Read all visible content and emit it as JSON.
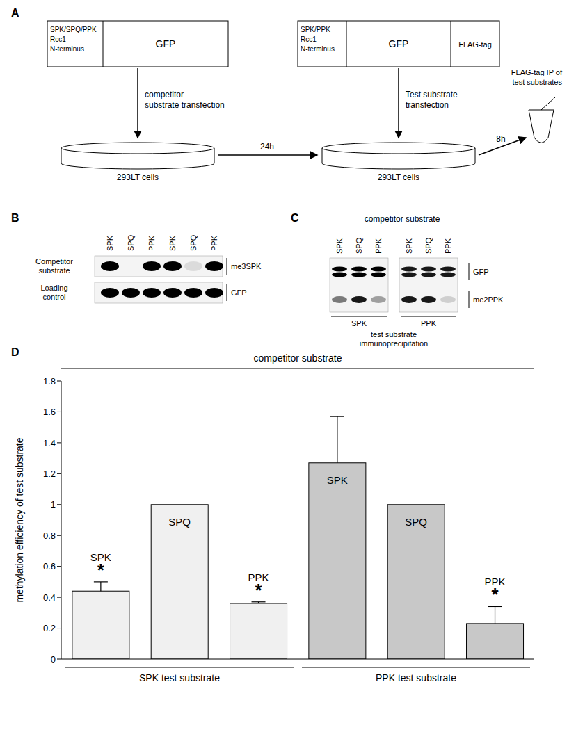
{
  "panel_labels": [
    "A",
    "B",
    "C",
    "D"
  ],
  "diagram": {
    "competitor_construct": {
      "lines": [
        "SPK/SPQ/PPK",
        "Rcc1",
        "N-terminus"
      ],
      "gfp": "GFP"
    },
    "test_construct": {
      "lines": [
        "SPK/PPK",
        "Rcc1",
        "N-terminus"
      ],
      "gfp": "GFP",
      "tag": "FLAG-tag"
    },
    "step1": [
      "competitor",
      "substrate transfection"
    ],
    "step2": [
      "Test substrate",
      "transfection"
    ],
    "cells": "293LT cells",
    "time1": "24h",
    "time2": "8h",
    "ip": [
      "FLAG-tag IP of",
      "test substrates"
    ]
  },
  "blot_b": {
    "lanes": [
      "SPK",
      "SPQ",
      "PPK",
      "SPK",
      "SPQ",
      "PPK"
    ],
    "rows": [
      {
        "label": [
          "Competitor",
          "substrate"
        ],
        "antibody": "me3SPK",
        "intensity": [
          1,
          0,
          1,
          1,
          0.1,
          1
        ]
      },
      {
        "label": [
          "Loading",
          "control"
        ],
        "antibody": "GFP",
        "intensity": [
          1,
          1,
          1,
          1,
          1,
          1
        ]
      }
    ]
  },
  "blot_c": {
    "title": "competitor substrate",
    "lanes": [
      "SPK",
      "SPQ",
      "PPK",
      "SPK",
      "SPQ",
      "PPK"
    ],
    "rows": [
      {
        "antibody": "GFP",
        "intensity": [
          1,
          1,
          1,
          0.9,
          0.9,
          0.9
        ]
      },
      {
        "antibody": "me2PPK",
        "intensity": [
          0.5,
          0.9,
          0.35,
          0.9,
          0.9,
          0.15
        ]
      }
    ],
    "groups": [
      "SPK",
      "PPK"
    ],
    "footer": [
      "test substrate",
      "immunoprecipitation"
    ]
  },
  "chart_data": {
    "type": "bar",
    "title": "competitor substrate",
    "y_label": "methylation efficiency of test substrate",
    "categories": [
      "SPK",
      "SPQ",
      "PPK",
      "SPK",
      "SPQ",
      "PPK"
    ],
    "values": [
      0.44,
      1,
      0.36,
      1.27,
      1,
      0.23
    ],
    "errors": [
      0.06,
      null,
      0.01,
      0.3,
      null,
      0.11
    ],
    "significance": [
      "*",
      null,
      "*",
      null,
      null,
      "*"
    ],
    "group_labels": [
      "SPK test substrate",
      "PPK test substrate"
    ],
    "colors": [
      "#f0f0f0",
      "#f0f0f0",
      "#f0f0f0",
      "#c8c8c8",
      "#c8c8c8",
      "#c8c8c8"
    ],
    "ylim": [
      0,
      1.8
    ],
    "yticks": [
      0,
      0.2,
      0.4,
      0.6,
      0.8,
      1,
      1.2,
      1.4,
      1.6,
      1.8
    ],
    "grid": false,
    "tick_labels": "y"
  }
}
